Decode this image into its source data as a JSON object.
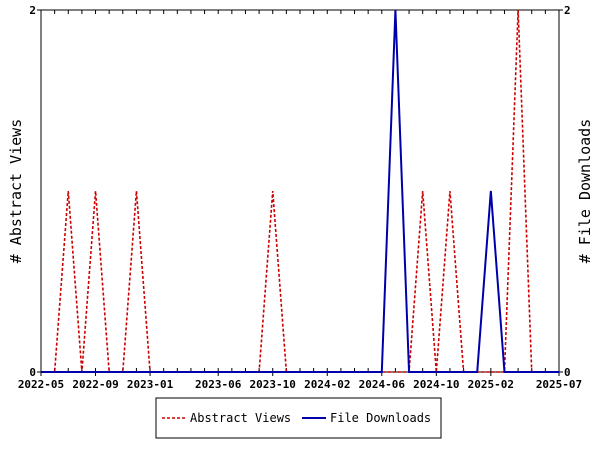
{
  "chart_data": {
    "type": "line",
    "title": "",
    "ylabel_left": "# Abstract Views",
    "ylabel_right": "# File Downloads",
    "ylim": [
      0,
      2
    ],
    "y_ticks": [
      "0",
      "2"
    ],
    "x_tick_labels": [
      "2022-05",
      "2022-09",
      "2023-01",
      "2023-06",
      "2023-10",
      "2024-02",
      "2024-06",
      "2024-10",
      "2025-02",
      "2025-07"
    ],
    "x": [
      "2022-05",
      "2022-06",
      "2022-07",
      "2022-08",
      "2022-09",
      "2022-10",
      "2022-11",
      "2022-12",
      "2023-01",
      "2023-02",
      "2023-03",
      "2023-04",
      "2023-05",
      "2023-06",
      "2023-07",
      "2023-08",
      "2023-09",
      "2023-10",
      "2023-11",
      "2023-12",
      "2024-01",
      "2024-02",
      "2024-03",
      "2024-04",
      "2024-05",
      "2024-06",
      "2024-07",
      "2024-08",
      "2024-09",
      "2024-10",
      "2024-11",
      "2024-12",
      "2025-01",
      "2025-02",
      "2025-03",
      "2025-04",
      "2025-05",
      "2025-06",
      "2025-07"
    ],
    "series": [
      {
        "name": "Abstract Views",
        "color": "#cc0000",
        "dash": true,
        "values": [
          0,
          0,
          1,
          0,
          1,
          0,
          0,
          1,
          0,
          0,
          0,
          0,
          0,
          0,
          0,
          0,
          0,
          1,
          0,
          0,
          0,
          0,
          0,
          0,
          0,
          0,
          0,
          0,
          1,
          0,
          1,
          0,
          0,
          0,
          0,
          2,
          0,
          0,
          0
        ]
      },
      {
        "name": "File Downloads",
        "color": "#0000aa",
        "dash": false,
        "values": [
          0,
          0,
          0,
          0,
          0,
          0,
          0,
          0,
          0,
          0,
          0,
          0,
          0,
          0,
          0,
          0,
          0,
          0,
          0,
          0,
          0,
          0,
          0,
          0,
          0,
          0,
          2,
          0,
          0,
          0,
          0,
          0,
          0,
          1,
          0,
          0,
          0,
          0,
          0
        ]
      }
    ],
    "grid": false,
    "legend_position": "bottom"
  }
}
